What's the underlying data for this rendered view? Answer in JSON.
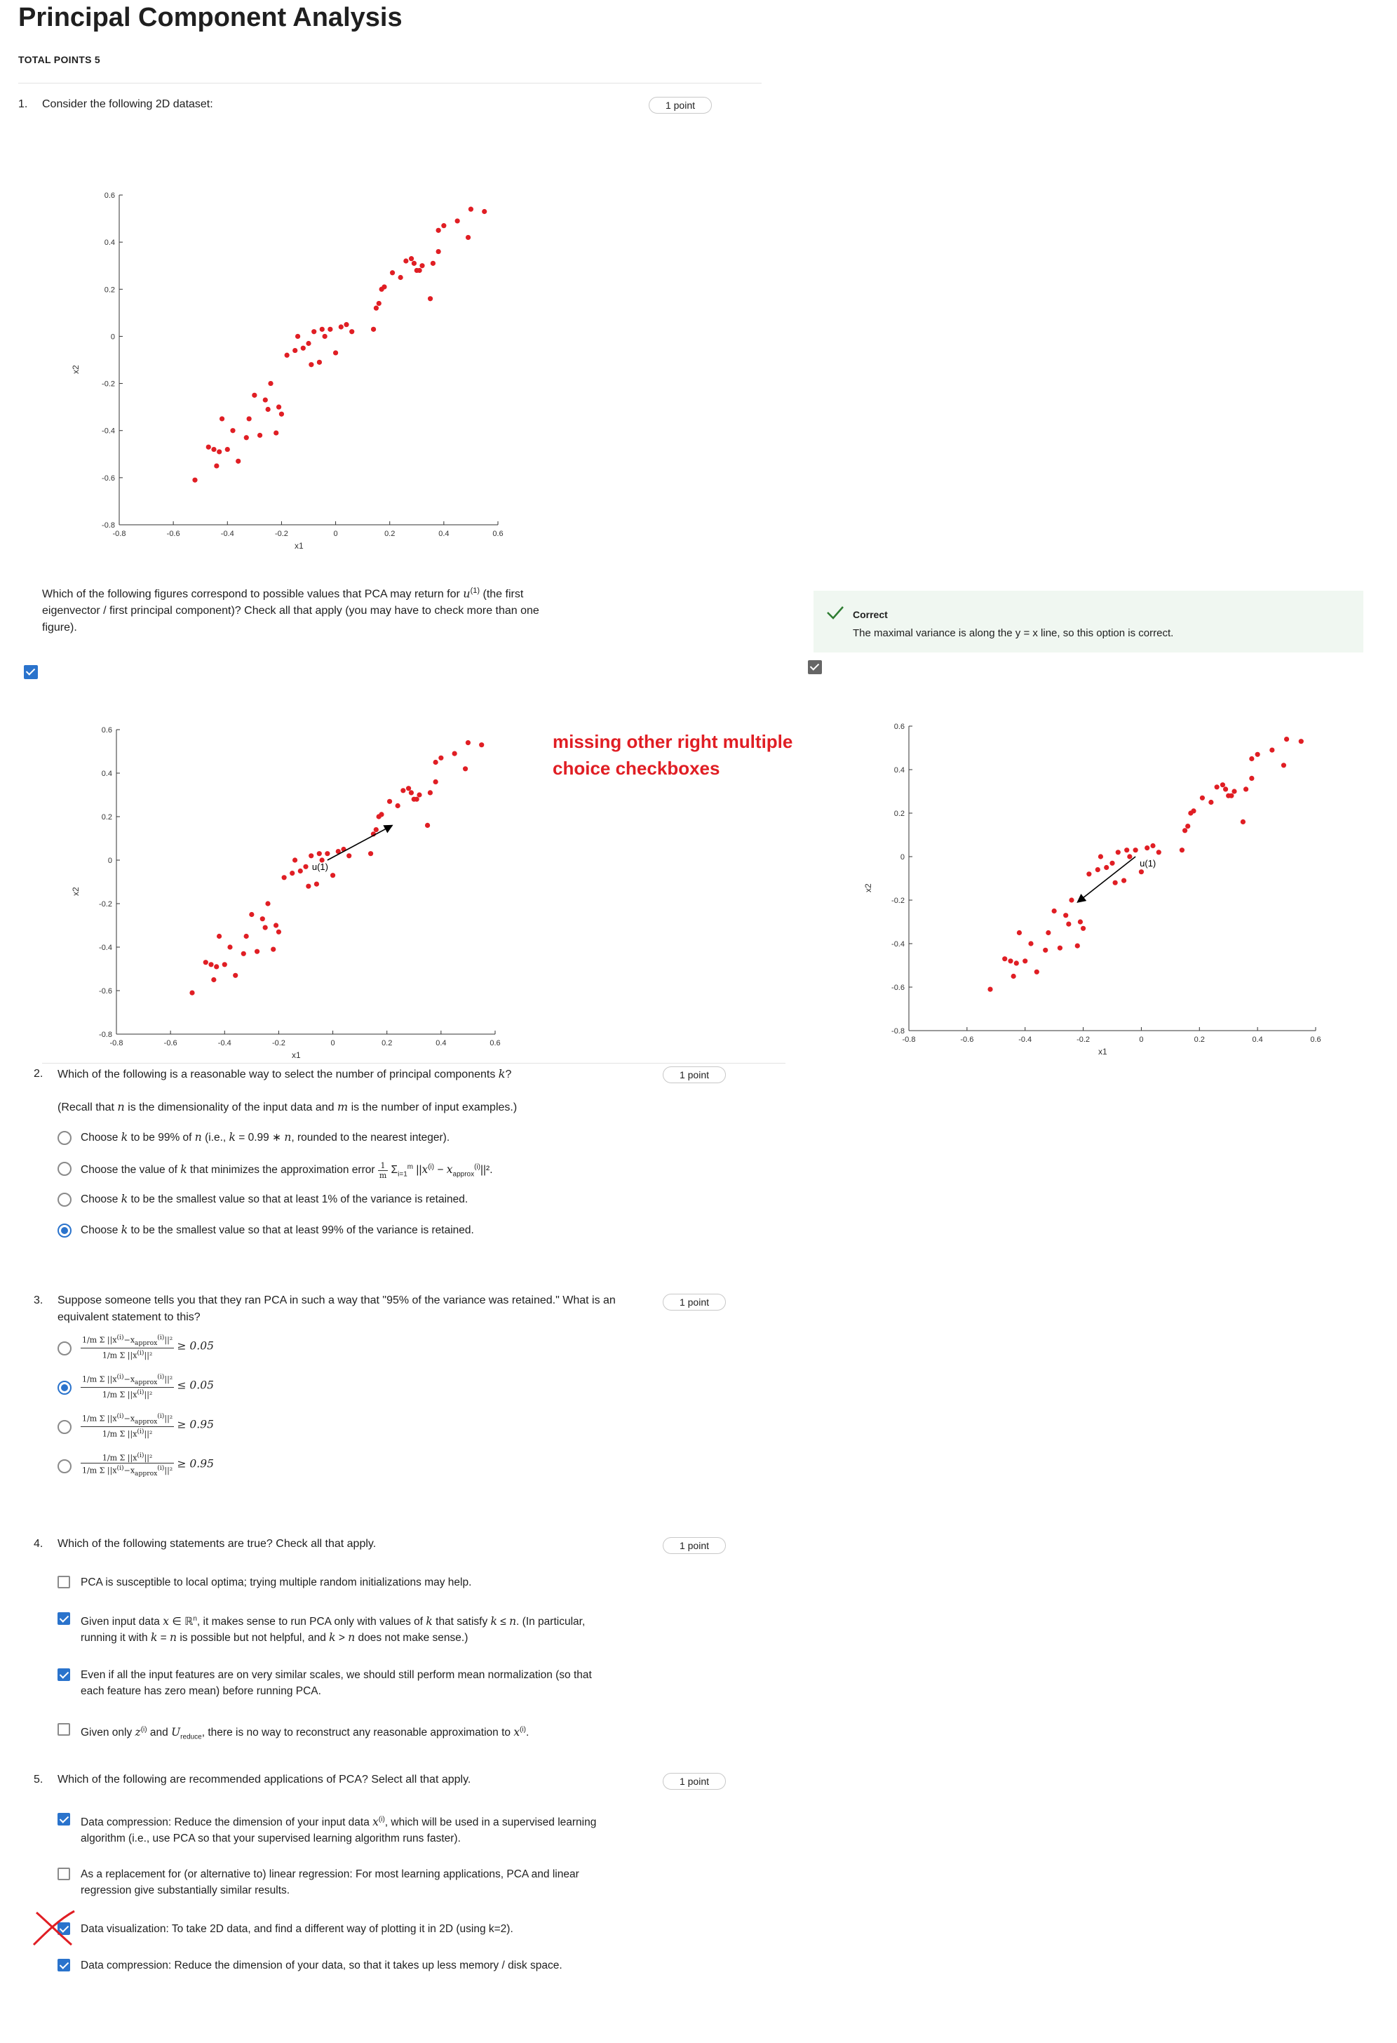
{
  "page": {
    "title": "Principal Component Analysis",
    "total_points": "TOTAL POINTS 5"
  },
  "q1": {
    "number": "1.",
    "text": "Consider the following 2D dataset:",
    "points": "1 point",
    "prompt": "Which of the following figures correspond to possible values that PCA may return for u(1) (the first eigenvector / first principal component)? Check all that apply (you may have to check more than one figure).",
    "option_a_checked": true,
    "option_b_checked": true,
    "feedback": {
      "title": "Correct",
      "body": "The maximal variance is along the y = x line, so this option is correct."
    },
    "annotation_line1": "missing other right multiple",
    "annotation_line2": "choice checkboxes",
    "arrow_label": "u(1)"
  },
  "q2": {
    "number": "2.",
    "text": "Which of the following is a reasonable way to select the number of principal components k?",
    "recall": "(Recall that n is the dimensionality of the input data and m is the number of input examples.)",
    "points": "1 point",
    "options": [
      {
        "label": "Choose k to be 99% of n (i.e., k = 0.99 ∗ n, rounded to the nearest integer).",
        "selected": false
      },
      {
        "label": "Choose the value of k that minimizes the approximation error 1/m Σ ||x(i) − x(i)approx||².",
        "selected": false
      },
      {
        "label": "Choose k to be the smallest value so that at least 1% of the variance is retained.",
        "selected": false
      },
      {
        "label": "Choose k to be the smallest value so that at least 99% of the variance is retained.",
        "selected": true
      }
    ]
  },
  "q3": {
    "number": "3.",
    "text": "Suppose someone tells you that they ran PCA in such a way that \"95% of the variance was retained.\" What is an equivalent statement to this?",
    "points": "1 point",
    "options": [
      {
        "num": "1/m Σ ||x(i) − x(i)approx||²",
        "den": "1/m Σ ||x(i)||²",
        "rel": "≥ 0.05",
        "selected": false
      },
      {
        "num": "1/m Σ ||x(i) − x(i)approx||²",
        "den": "1/m Σ ||x(i)||²",
        "rel": "≤ 0.05",
        "selected": true
      },
      {
        "num": "1/m Σ ||x(i) − x(i)approx||²",
        "den": "1/m Σ ||x(i)||²",
        "rel": "≥ 0.95",
        "selected": false
      },
      {
        "num": "1/m Σ ||x(i)||²",
        "den": "1/m Σ ||x(i) − x(i)approx||²",
        "rel": "≥ 0.95",
        "selected": false
      }
    ]
  },
  "q4": {
    "number": "4.",
    "text": "Which of the following statements are true? Check all that apply.",
    "points": "1 point",
    "options": [
      {
        "label": "PCA is susceptible to local optima; trying multiple random initializations may help.",
        "checked": false
      },
      {
        "label": "Given input data x ∈ Rⁿ, it makes sense to run PCA only with values of k that satisfy k ≤ n. (In particular, running it with k = n is possible but not helpful, and k > n does not make sense.)",
        "checked": true
      },
      {
        "label": "Even if all the input features are on very similar scales, we should still perform mean normalization (so that each feature has zero mean) before running PCA.",
        "checked": true
      },
      {
        "label": "Given only z(i) and Ureduce, there is no way to reconstruct any reasonable approximation to x(i).",
        "checked": false
      }
    ]
  },
  "q5": {
    "number": "5.",
    "text": "Which of the following are recommended applications of PCA? Select all that apply.",
    "points": "1 point",
    "options": [
      {
        "label": "Data compression: Reduce the dimension of your input data x(i), which will be used in a supervised learning algorithm (i.e., use PCA so that your supervised learning algorithm runs faster).",
        "checked": true
      },
      {
        "label": "As a replacement for (or alternative to) linear regression: For most learning applications, PCA and linear regression give substantially similar results.",
        "checked": false
      },
      {
        "label": "Data visualization: To take 2D data, and find a different way of plotting it in 2D (using k=2).",
        "checked": true
      },
      {
        "label": "Data compression: Reduce the dimension of your data, so that it takes up less memory / disk space.",
        "checked": true
      }
    ]
  },
  "colors": {
    "accent": "#2a73cc",
    "points": "#e01e24",
    "feedback_bg": "#f0f7f1",
    "correct_green": "#2e7d32",
    "annotation": "#e01e24"
  },
  "icons": [
    "checkbox-icon",
    "radio-icon",
    "check-mark-icon",
    "cross-out-mark"
  ],
  "chart_data": [
    {
      "type": "scatter",
      "name": "dataset",
      "xlabel": "x1",
      "ylabel": "x2",
      "xlim": [
        -0.8,
        0.6
      ],
      "ylim": [
        -0.8,
        0.6
      ],
      "xticks": [
        "-0.8",
        "-0.6",
        "-0.4",
        "-0.2",
        "0",
        "0.2",
        "0.4",
        "0.6"
      ],
      "yticks": [
        "0.6",
        "0.4",
        "0.2",
        "0",
        "-0.2",
        "-0.4",
        "-0.6",
        "-0.8"
      ],
      "x": [
        -0.52,
        -0.47,
        -0.45,
        -0.44,
        -0.43,
        -0.42,
        -0.4,
        -0.38,
        -0.36,
        -0.33,
        -0.32,
        -0.3,
        -0.28,
        -0.26,
        -0.25,
        -0.24,
        -0.22,
        -0.21,
        -0.2,
        -0.18,
        -0.15,
        -0.14,
        -0.12,
        -0.1,
        -0.09,
        -0.08,
        -0.06,
        -0.05,
        -0.04,
        -0.02,
        0.0,
        0.02,
        0.04,
        0.06,
        0.14,
        0.15,
        0.16,
        0.17,
        0.18,
        0.21,
        0.24,
        0.26,
        0.28,
        0.29,
        0.3,
        0.31,
        0.32,
        0.35,
        0.36,
        0.38,
        0.38,
        0.4,
        0.45,
        0.49,
        0.5,
        0.55
      ],
      "y": [
        -0.61,
        -0.47,
        -0.48,
        -0.55,
        -0.49,
        -0.35,
        -0.48,
        -0.4,
        -0.53,
        -0.43,
        -0.35,
        -0.25,
        -0.42,
        -0.27,
        -0.31,
        -0.2,
        -0.41,
        -0.3,
        -0.33,
        -0.08,
        -0.06,
        0.0,
        -0.05,
        -0.03,
        -0.12,
        0.02,
        -0.11,
        0.03,
        0.0,
        0.03,
        -0.07,
        0.04,
        0.05,
        0.02,
        0.03,
        0.12,
        0.14,
        0.2,
        0.21,
        0.27,
        0.25,
        0.32,
        0.33,
        0.31,
        0.28,
        0.28,
        0.3,
        0.16,
        0.31,
        0.45,
        0.36,
        0.47,
        0.49,
        0.42,
        0.54,
        0.53
      ]
    },
    {
      "type": "scatter",
      "name": "option-a",
      "xlabel": "x1",
      "ylabel": "x2",
      "xlim": [
        -0.8,
        0.6
      ],
      "ylim": [
        -0.8,
        0.6
      ],
      "xticks": [
        "-0.8",
        "-0.6",
        "-0.4",
        "-0.2",
        "0",
        "0.2",
        "0.4",
        "0.6"
      ],
      "yticks": [
        "0.6",
        "0.4",
        "0.2",
        "0",
        "-0.2",
        "-0.4",
        "-0.6",
        "-0.8"
      ],
      "arrow": {
        "from": [
          -0.02,
          0.0
        ],
        "to": [
          0.22,
          0.16
        ],
        "label": "u(1)"
      }
    },
    {
      "type": "scatter",
      "name": "option-b",
      "xlabel": "x1",
      "ylabel": "x2",
      "xlim": [
        -0.8,
        0.6
      ],
      "ylim": [
        -0.8,
        0.6
      ],
      "xticks": [
        "-0.8",
        "-0.6",
        "-0.4",
        "-0.2",
        "0",
        "0.2",
        "0.4",
        "0.6"
      ],
      "yticks": [
        "0.6",
        "0.4",
        "0.2",
        "0",
        "-0.2",
        "-0.4",
        "-0.6",
        "-0.8"
      ],
      "arrow": {
        "from": [
          -0.02,
          0.0
        ],
        "to": [
          -0.22,
          -0.21
        ],
        "label": "u(1)"
      }
    }
  ]
}
